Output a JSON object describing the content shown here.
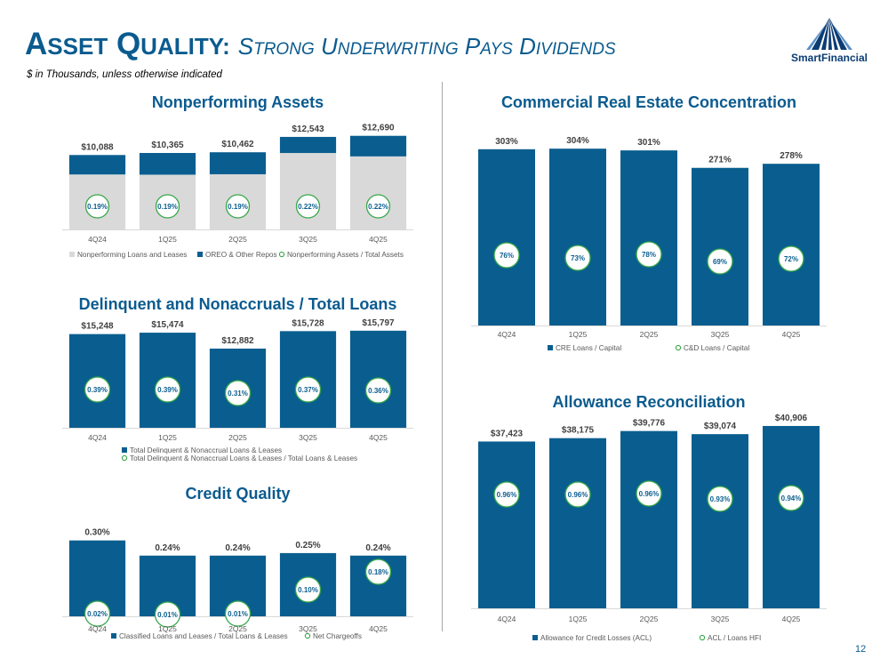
{
  "header": {
    "title_main": "Asset Quality:",
    "title_sub": "Strong Underwriting Pays Dividends",
    "subtitle": "$ in Thousands, unless otherwise indicated",
    "logo_text": "SmartFinancial",
    "page_number": "12"
  },
  "colors": {
    "title_blue": "#0b5b8f",
    "bar_blue": "#0a5e8f",
    "bar_gray": "#d9d9d9",
    "marker_green": "#38a84a",
    "text_dark": "#404040"
  },
  "chart_data": [
    {
      "id": "npa",
      "type": "bar",
      "stacked": true,
      "title": "Nonperforming Assets",
      "categories": [
        "4Q24",
        "1Q25",
        "2Q25",
        "3Q25",
        "4Q25"
      ],
      "series": [
        {
          "name": "Nonperforming Loans and Leases",
          "values": [
            7450,
            7420,
            7480,
            10360,
            9900
          ]
        },
        {
          "name": "OREO & Other Repos",
          "values": [
            2638,
            2945,
            2982,
            2183,
            2790
          ]
        }
      ],
      "totals": [
        "$10,088",
        "$10,365",
        "$10,462",
        "$12,543",
        "$12,690"
      ],
      "ratio": {
        "name": "Nonperforming Assets / Total Assets",
        "labels": [
          "0.19%",
          "0.19%",
          "0.19%",
          "0.22%",
          "0.22%"
        ]
      },
      "ylim": [
        0,
        13500
      ],
      "legend": "bottom"
    },
    {
      "id": "delinq",
      "type": "bar",
      "title": "Delinquent and Nonaccruals / Total Loans",
      "categories": [
        "4Q24",
        "1Q25",
        "2Q25",
        "3Q25",
        "4Q25"
      ],
      "series": [
        {
          "name": "Total Delinquent & Nonaccrual Loans & Leases",
          "values": [
            15248,
            15474,
            12882,
            15728,
            15797
          ]
        }
      ],
      "value_labels": [
        "$15,248",
        "$15,474",
        "$12,882",
        "$15,728",
        "$15,797"
      ],
      "ratio": {
        "name": "Total Delinquent & Nonaccrual Loans & Leases / Total Loans & Leases",
        "labels": [
          "0.39%",
          "0.39%",
          "0.31%",
          "0.37%",
          "0.36%"
        ]
      },
      "ylim": [
        0,
        16500
      ],
      "legend": "bottom"
    },
    {
      "id": "credit",
      "type": "bar",
      "title": "Credit Quality",
      "categories": [
        "4Q24",
        "1Q25",
        "2Q25",
        "3Q25",
        "4Q25"
      ],
      "series": [
        {
          "name": "Classified Loans and Leases / Total Loans & Leases",
          "values": [
            0.3,
            0.24,
            0.24,
            0.25,
            0.24
          ]
        }
      ],
      "value_labels": [
        "0.30%",
        "0.24%",
        "0.24%",
        "0.25%",
        "0.24%"
      ],
      "ratio": {
        "name": "Net Chargeoffs",
        "values": [
          0.02,
          0.01,
          0.01,
          0.1,
          0.18
        ],
        "labels": [
          "0.02%",
          "0.01%",
          "0.01%",
          "0.10%",
          "0.18%"
        ]
      },
      "ylim": [
        0,
        0.32
      ],
      "legend": "bottom"
    },
    {
      "id": "cre",
      "type": "bar",
      "title": "Commercial Real Estate Concentration",
      "categories": [
        "4Q24",
        "1Q25",
        "2Q25",
        "3Q25",
        "4Q25"
      ],
      "series": [
        {
          "name": "CRE Loans / Capital",
          "values": [
            303,
            304,
            301,
            271,
            278
          ]
        }
      ],
      "value_labels": [
        "303%",
        "304%",
        "301%",
        "271%",
        "278%"
      ],
      "ratio": {
        "name": "C&D Loans / Capital",
        "values": [
          76,
          73,
          78,
          69,
          72
        ],
        "labels": [
          "76%",
          "73%",
          "78%",
          "69%",
          "72%"
        ]
      },
      "ylim": [
        0,
        318
      ],
      "legend": "bottom"
    },
    {
      "id": "acl",
      "type": "bar",
      "title": "Allowance Reconciliation",
      "categories": [
        "4Q24",
        "1Q25",
        "2Q25",
        "3Q25",
        "4Q25"
      ],
      "series": [
        {
          "name": "Allowance for Credit Losses (ACL)",
          "values": [
            37423,
            38175,
            39776,
            39074,
            40906
          ]
        }
      ],
      "value_labels": [
        "$37,423",
        "$38,175",
        "$39,776",
        "$39,074",
        "$40,906"
      ],
      "ratio": {
        "name": "ACL / Loans HFI",
        "values": [
          0.96,
          0.96,
          0.96,
          0.93,
          0.94
        ],
        "labels": [
          "0.96%",
          "0.96%",
          "0.96%",
          "0.93%",
          "0.94%"
        ]
      },
      "ylim": [
        0,
        42500
      ],
      "legend": "bottom"
    }
  ]
}
